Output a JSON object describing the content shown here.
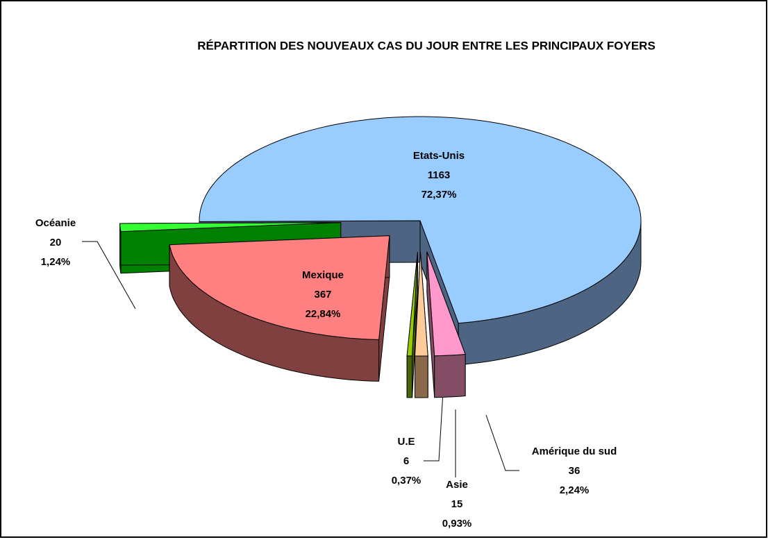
{
  "chart_data": {
    "type": "pie3d",
    "title": "RÉPARTITION DES NOUVEAUX CAS DU JOUR ENTRE LES PRINCIPAUX FOYERS",
    "categories": [
      "Etats-Unis",
      "Amérique du sud",
      "Asie",
      "U.E",
      "Mexique",
      "Océanie"
    ],
    "values": [
      1163,
      36,
      15,
      6,
      367,
      20
    ],
    "percent_labels": [
      "72,37%",
      "2,24%",
      "0,93%",
      "0,37%",
      "22,84%",
      "1,24%"
    ],
    "colors": [
      "#99ccff",
      "#ff99cc",
      "#ffcc99",
      "#99cc00",
      "#ff8080",
      "#33ff33"
    ],
    "side_colors": [
      "#4d6482",
      "#844d66",
      "#8a6a4a",
      "#4a6600",
      "#804040",
      "#008000"
    ]
  }
}
